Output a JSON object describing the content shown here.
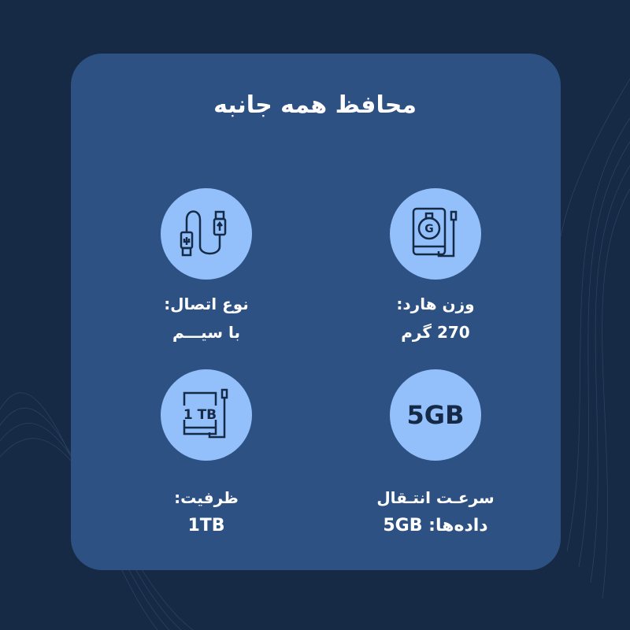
{
  "title": "محافظ همه جانبه",
  "colors": {
    "background": "#172a45",
    "card": "#2d5182",
    "circle": "#93c0fa",
    "icon": "#142a47",
    "text": "#ffffff"
  },
  "features": [
    {
      "icon": "hard-drive-weight-icon",
      "label": "وزن هارد:",
      "value": "270 گرم"
    },
    {
      "icon": "usb-cable-icon",
      "label": "نوع اتصال:",
      "value": "با سیـــم"
    },
    {
      "icon_text": "5GB",
      "label": "سرعـت انتـقال",
      "value": "داده‌ها: 5GB"
    },
    {
      "icon": "hard-drive-capacity-icon",
      "icon_text": "1 TB",
      "label": "ظرفیت:",
      "value": "1TB"
    }
  ]
}
